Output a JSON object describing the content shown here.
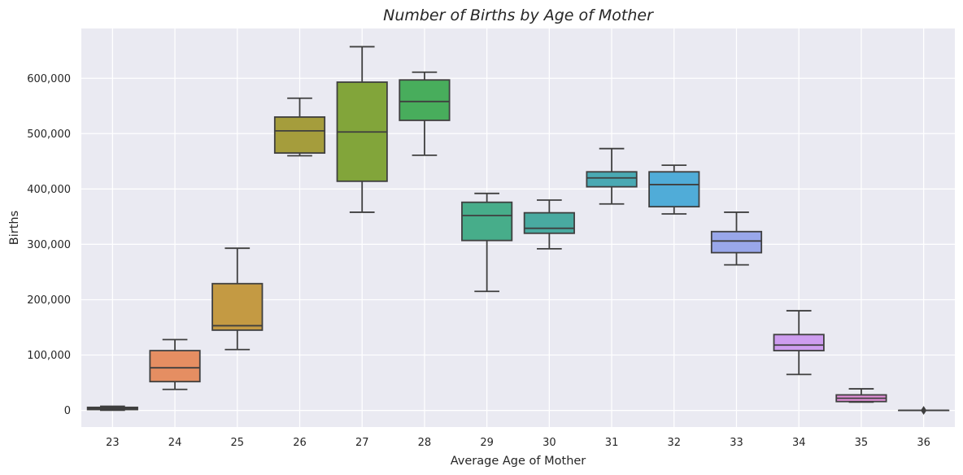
{
  "chart_data": {
    "type": "box",
    "title": "Number of Births by Age of Mother",
    "xlabel": "Average Age of Mother",
    "ylabel": "Births",
    "ylim": [
      -30000,
      690000
    ],
    "yticks": [
      0,
      100000,
      200000,
      300000,
      400000,
      500000,
      600000
    ],
    "ytick_labels": [
      "0",
      "100,000",
      "200,000",
      "300,000",
      "400,000",
      "500,000",
      "600,000"
    ],
    "grid": true,
    "background": "#eaeaf2",
    "categories": [
      "23",
      "24",
      "25",
      "26",
      "27",
      "28",
      "29",
      "30",
      "31",
      "32",
      "33",
      "34",
      "35",
      "36"
    ],
    "boxes": [
      {
        "category": "23",
        "whisker_low": 300,
        "q1": 1500,
        "median": 3500,
        "q3": 5500,
        "whisker_high": 7500,
        "color": "#3f3f3f"
      },
      {
        "category": "24",
        "whisker_low": 38000,
        "q1": 52000,
        "median": 77000,
        "q3": 108000,
        "whisker_high": 128000,
        "color": "#e58e62"
      },
      {
        "category": "25",
        "whisker_low": 110000,
        "q1": 145000,
        "median": 153000,
        "q3": 229000,
        "whisker_high": 293000,
        "color": "#c49a43"
      },
      {
        "category": "26",
        "whisker_low": 460000,
        "q1": 465000,
        "median": 505000,
        "q3": 530000,
        "whisker_high": 564000,
        "color": "#a59d3c"
      },
      {
        "category": "27",
        "whisker_low": 358000,
        "q1": 414000,
        "median": 503000,
        "q3": 593000,
        "whisker_high": 657000,
        "color": "#82a53a"
      },
      {
        "category": "28",
        "whisker_low": 461000,
        "q1": 524000,
        "median": 558000,
        "q3": 597000,
        "whisker_high": 611000,
        "color": "#48ad5c"
      },
      {
        "category": "29",
        "whisker_low": 215000,
        "q1": 307000,
        "median": 352000,
        "q3": 376000,
        "whisker_high": 392000,
        "color": "#47ad8a"
      },
      {
        "category": "30",
        "whisker_low": 292000,
        "q1": 320000,
        "median": 329000,
        "q3": 357000,
        "whisker_high": 380000,
        "color": "#49aaa0"
      },
      {
        "category": "31",
        "whisker_low": 373000,
        "q1": 404000,
        "median": 420000,
        "q3": 431000,
        "whisker_high": 473000,
        "color": "#4aa9b3"
      },
      {
        "category": "32",
        "whisker_low": 355000,
        "q1": 368000,
        "median": 408000,
        "q3": 431000,
        "whisker_high": 443000,
        "color": "#50acd8"
      },
      {
        "category": "33",
        "whisker_low": 263000,
        "q1": 285000,
        "median": 306000,
        "q3": 323000,
        "whisker_high": 358000,
        "color": "#99a7ea"
      },
      {
        "category": "34",
        "whisker_low": 65000,
        "q1": 108000,
        "median": 118000,
        "q3": 137000,
        "whisker_high": 180000,
        "color": "#ce9df0"
      },
      {
        "category": "35",
        "whisker_low": 15000,
        "q1": 16000,
        "median": 22000,
        "q3": 28000,
        "whisker_high": 39000,
        "color": "#e28fd8"
      },
      {
        "category": "36",
        "whisker_low": 0,
        "q1": 0,
        "median": 0,
        "q3": 0,
        "whisker_high": 0,
        "color": "#ea8fbe",
        "outliers": [
          0
        ]
      }
    ]
  }
}
